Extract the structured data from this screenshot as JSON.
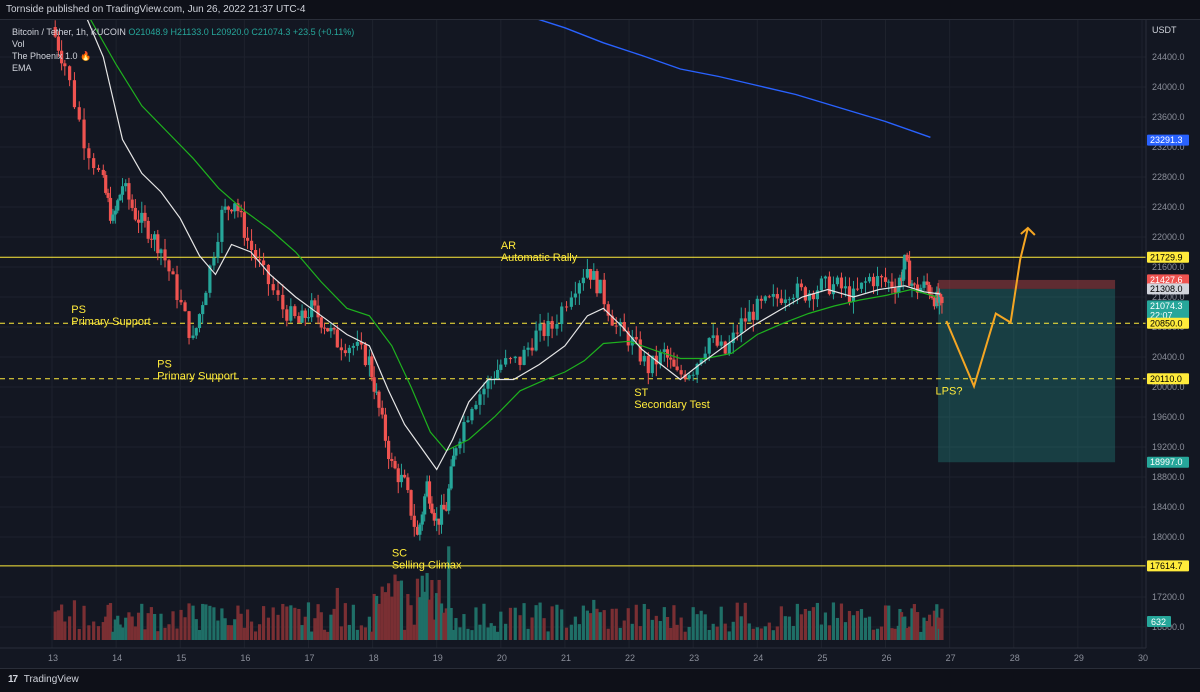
{
  "header": {
    "publish_line": "Tornside published on TradingView.com, Jun 26, 2022 21:37 UTC-4"
  },
  "legend": {
    "symbol": "Bitcoin / Tether, 1h, KUCOIN",
    "ohlc": "O21048.9 H21133.0 L20920.0 C21074.3 +23.5 (+0.11%)",
    "indicators": [
      "Vol",
      "The Phoenix 1.0 🔥",
      "EMA"
    ]
  },
  "footer": {
    "brand": "TradingView",
    "logo_glyph": "17"
  },
  "colors": {
    "background": "#131722",
    "up": "#26a69a",
    "down": "#ef5350",
    "ema_green": "#1eb21e",
    "ma_white": "#e6e6e6",
    "ema_blue": "#2962ff",
    "annotation": "#ffeb3b",
    "projection": "#f5a623"
  },
  "chart_data": {
    "type": "candlestick",
    "currency_label": "USDT",
    "ylim": [
      16800,
      24900
    ],
    "xlim": [
      12.57,
      30.0
    ],
    "x_ticks": [
      {
        "x": 13,
        "label": "13"
      },
      {
        "x": 14,
        "label": "14"
      },
      {
        "x": 15,
        "label": "15"
      },
      {
        "x": 16,
        "label": "16"
      },
      {
        "x": 17,
        "label": "17"
      },
      {
        "x": 18,
        "label": "18"
      },
      {
        "x": 19,
        "label": "19"
      },
      {
        "x": 20,
        "label": "20"
      },
      {
        "x": 21,
        "label": "21"
      },
      {
        "x": 22,
        "label": "22"
      },
      {
        "x": 23,
        "label": "23"
      },
      {
        "x": 24,
        "label": "24"
      },
      {
        "x": 25,
        "label": "25"
      },
      {
        "x": 26,
        "label": "26"
      },
      {
        "x": 27,
        "label": "27"
      },
      {
        "x": 28,
        "label": "28"
      },
      {
        "x": 29,
        "label": "29"
      },
      {
        "x": 30,
        "label": "30"
      }
    ],
    "y_ticks": [
      {
        "y": 24400,
        "label": "24400.0"
      },
      {
        "y": 24000,
        "label": "24000.0"
      },
      {
        "y": 23600,
        "label": "23600.0"
      },
      {
        "y": 23200,
        "label": "23200.0"
      },
      {
        "y": 22800,
        "label": "22800.0"
      },
      {
        "y": 22400,
        "label": "22400.0"
      },
      {
        "y": 22000,
        "label": "22000.0"
      },
      {
        "y": 21600,
        "label": "21600.0"
      },
      {
        "y": 21200,
        "label": "21200.0"
      },
      {
        "y": 20800,
        "label": "20800.0"
      },
      {
        "y": 20400,
        "label": "20400.0"
      },
      {
        "y": 20000,
        "label": "20000.0"
      },
      {
        "y": 19600,
        "label": "19600.0"
      },
      {
        "y": 19200,
        "label": "19200.0"
      },
      {
        "y": 18800,
        "label": "18800.0"
      },
      {
        "y": 18400,
        "label": "18400.0"
      },
      {
        "y": 18000,
        "label": "18000.0"
      },
      {
        "y": 17200,
        "label": "17200.0"
      },
      {
        "y": 16800,
        "label": "16800.0"
      }
    ],
    "price_tags": [
      {
        "y": 23291.3,
        "label": "23291.3",
        "bg": "#2962ff",
        "fg": "#ffffff"
      },
      {
        "y": 21729.9,
        "label": "21729.9",
        "bg": "#ffeb3b",
        "fg": "#000000"
      },
      {
        "y": 21427.6,
        "label": "21427.6",
        "bg": "#ef5350",
        "fg": "#ffffff"
      },
      {
        "y": 21308.0,
        "label": "21308.0",
        "bg": "#d1d4dc",
        "fg": "#000000"
      },
      {
        "y": 21074.3,
        "label": "21074.3",
        "label2": "22:07",
        "bg": "#26a69a",
        "fg": "#ffffff"
      },
      {
        "y": 20850.0,
        "label": "20850.0",
        "bg": "#ffeb3b",
        "fg": "#000000"
      },
      {
        "y": 20110.0,
        "label": "20110.0",
        "bg": "#ffeb3b",
        "fg": "#000000"
      },
      {
        "y": 18997.0,
        "label": "18997.0",
        "bg": "#26a69a",
        "fg": "#ffffff"
      },
      {
        "y": 17614.7,
        "label": "17614.7",
        "bg": "#ffeb3b",
        "fg": "#000000"
      }
    ],
    "volume_tag": {
      "label": "632",
      "bg": "#26a69a",
      "fg": "#ffffff"
    },
    "horizontal_levels": [
      {
        "y": 21729.9,
        "style": "solid"
      },
      {
        "y": 20850.0,
        "style": "dashed"
      },
      {
        "y": 20110.0,
        "style": "dashed"
      },
      {
        "y": 17614.7,
        "style": "solid"
      }
    ],
    "annotations": [
      {
        "x": 13.3,
        "y": 20990,
        "lines": [
          "PS",
          "Primary Support"
        ]
      },
      {
        "x": 14.64,
        "y": 20260,
        "lines": [
          "PS",
          "Primary Support"
        ]
      },
      {
        "x": 20.0,
        "y": 21840,
        "lines": [
          "AR",
          "Automatic Rally"
        ]
      },
      {
        "x": 18.3,
        "y": 17740,
        "lines": [
          "SC",
          "Selling Climax"
        ]
      },
      {
        "x": 22.08,
        "y": 19880,
        "lines": [
          "ST",
          "Secondary Test"
        ]
      },
      {
        "x": 26.78,
        "y": 19900,
        "lines": [
          "LPS?"
        ]
      }
    ],
    "position_box": {
      "x_start": 26.82,
      "x_end": 29.58,
      "entry": 21308.0,
      "stop": 21427.6,
      "target": 18997.0
    },
    "projection": [
      [
        26.95,
        20880
      ],
      [
        27.38,
        20010
      ],
      [
        27.72,
        20980
      ],
      [
        27.95,
        20860
      ],
      [
        28.1,
        21700
      ],
      [
        28.22,
        22120
      ]
    ],
    "blue_ema": [
      [
        20.3,
        24980
      ],
      [
        21.0,
        24790
      ],
      [
        21.6,
        24590
      ],
      [
        22.2,
        24420
      ],
      [
        22.8,
        24240
      ],
      [
        23.4,
        24140
      ],
      [
        24.0,
        24020
      ],
      [
        24.6,
        23900
      ],
      [
        25.3,
        23720
      ],
      [
        26.0,
        23540
      ],
      [
        26.7,
        23330
      ]
    ],
    "green_ema": [
      [
        13.6,
        24900
      ],
      [
        14.0,
        24300
      ],
      [
        14.4,
        23750
      ],
      [
        14.8,
        23400
      ],
      [
        15.2,
        23050
      ],
      [
        15.6,
        22650
      ],
      [
        16.0,
        22350
      ],
      [
        16.4,
        22100
      ],
      [
        16.8,
        21800
      ],
      [
        17.2,
        21400
      ],
      [
        17.6,
        21050
      ],
      [
        17.95,
        20950
      ],
      [
        18.3,
        20550
      ],
      [
        18.6,
        20000
      ],
      [
        18.9,
        19400
      ],
      [
        19.15,
        19150
      ],
      [
        19.5,
        19300
      ],
      [
        19.9,
        19600
      ],
      [
        20.3,
        19950
      ],
      [
        20.7,
        20100
      ],
      [
        21.0,
        20200
      ],
      [
        21.3,
        20350
      ],
      [
        21.6,
        20580
      ],
      [
        22.0,
        20610
      ],
      [
        22.4,
        20490
      ],
      [
        22.8,
        20380
      ],
      [
        23.2,
        20380
      ],
      [
        23.6,
        20450
      ],
      [
        24.0,
        20700
      ],
      [
        24.4,
        20850
      ],
      [
        24.8,
        20980
      ],
      [
        25.2,
        21080
      ],
      [
        25.6,
        21160
      ],
      [
        26.0,
        21220
      ],
      [
        26.4,
        21300
      ],
      [
        26.8,
        21200
      ]
    ],
    "white_ma": [
      [
        13.5,
        25000
      ],
      [
        13.8,
        24400
      ],
      [
        14.1,
        23300
      ],
      [
        14.4,
        22850
      ],
      [
        14.7,
        22600
      ],
      [
        15.0,
        22250
      ],
      [
        15.3,
        21750
      ],
      [
        15.55,
        21500
      ],
      [
        15.8,
        21900
      ],
      [
        16.1,
        21800
      ],
      [
        16.4,
        21500
      ],
      [
        16.8,
        21200
      ],
      [
        17.2,
        20950
      ],
      [
        17.6,
        20700
      ],
      [
        17.95,
        20550
      ],
      [
        18.25,
        19950
      ],
      [
        18.5,
        19500
      ],
      [
        18.75,
        19200
      ],
      [
        19.0,
        18900
      ],
      [
        19.25,
        19300
      ],
      [
        19.5,
        19800
      ],
      [
        19.8,
        20100
      ],
      [
        20.2,
        20100
      ],
      [
        20.6,
        20300
      ],
      [
        21.0,
        20550
      ],
      [
        21.35,
        20950
      ],
      [
        21.6,
        21050
      ],
      [
        21.9,
        20800
      ],
      [
        22.2,
        20500
      ],
      [
        22.5,
        20300
      ],
      [
        22.8,
        20100
      ],
      [
        23.1,
        20300
      ],
      [
        23.5,
        20550
      ],
      [
        23.9,
        20800
      ],
      [
        24.3,
        21000
      ],
      [
        24.7,
        21200
      ],
      [
        25.1,
        21300
      ],
      [
        25.5,
        21200
      ],
      [
        25.9,
        21300
      ],
      [
        26.3,
        21350
      ],
      [
        26.6,
        21270
      ],
      [
        26.85,
        21240
      ]
    ],
    "price_path": [
      [
        13.0,
        24800
      ],
      [
        13.2,
        24300
      ],
      [
        13.5,
        23300
      ],
      [
        13.8,
        22700
      ],
      [
        13.95,
        22200
      ],
      [
        14.1,
        22700
      ],
      [
        14.3,
        22300
      ],
      [
        14.5,
        22100
      ],
      [
        14.7,
        21850
      ],
      [
        14.95,
        21250
      ],
      [
        15.2,
        20600
      ],
      [
        15.4,
        21350
      ],
      [
        15.65,
        22300
      ],
      [
        15.85,
        22500
      ],
      [
        16.05,
        21950
      ],
      [
        16.3,
        21500
      ],
      [
        16.6,
        21050
      ],
      [
        16.85,
        20850
      ],
      [
        17.05,
        21050
      ],
      [
        17.25,
        20850
      ],
      [
        17.45,
        20600
      ],
      [
        17.7,
        20550
      ],
      [
        17.95,
        20350
      ],
      [
        18.1,
        19700
      ],
      [
        18.3,
        18950
      ],
      [
        18.5,
        18700
      ],
      [
        18.7,
        18000
      ],
      [
        18.85,
        18700
      ],
      [
        19.0,
        18200
      ],
      [
        19.15,
        18400
      ],
      [
        19.3,
        19250
      ],
      [
        19.55,
        19800
      ],
      [
        19.8,
        20050
      ],
      [
        20.0,
        20300
      ],
      [
        20.3,
        20350
      ],
      [
        20.55,
        20700
      ],
      [
        20.8,
        20800
      ],
      [
        21.1,
        21300
      ],
      [
        21.35,
        21600
      ],
      [
        21.55,
        21300
      ],
      [
        21.8,
        20800
      ],
      [
        22.05,
        20600
      ],
      [
        22.3,
        20250
      ],
      [
        22.55,
        20450
      ],
      [
        22.75,
        20150
      ],
      [
        23.0,
        20250
      ],
      [
        23.25,
        20650
      ],
      [
        23.5,
        20450
      ],
      [
        23.75,
        20850
      ],
      [
        24.0,
        21050
      ],
      [
        24.25,
        21150
      ],
      [
        24.5,
        21300
      ],
      [
        24.75,
        21250
      ],
      [
        25.0,
        21350
      ],
      [
        25.25,
        21350
      ],
      [
        25.5,
        21200
      ],
      [
        25.75,
        21450
      ],
      [
        26.0,
        21400
      ],
      [
        26.2,
        21350
      ],
      [
        26.3,
        21650
      ],
      [
        26.45,
        21300
      ],
      [
        26.65,
        21350
      ],
      [
        26.8,
        21150
      ],
      [
        26.88,
        21074
      ]
    ]
  }
}
